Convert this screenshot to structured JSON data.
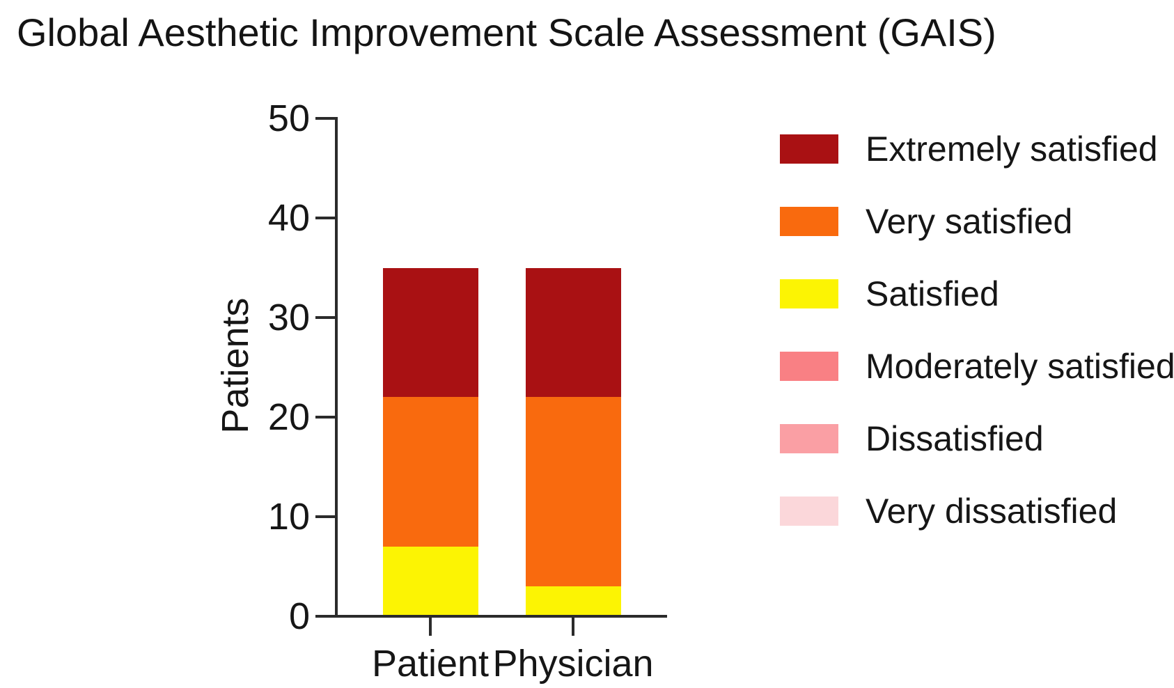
{
  "title": "Global Aesthetic Improvement Scale Assessment (GAIS)",
  "colors": {
    "axis": "#2b2b2b",
    "text": "#161616",
    "background": "#ffffff"
  },
  "chart_data": {
    "type": "bar",
    "stacked": true,
    "title": "Global Aesthetic Improvement Scale Assessment (GAIS)",
    "categories": [
      "Patient",
      "Physician"
    ],
    "series": [
      {
        "name": "Extremely satisfied",
        "color": "#A91113",
        "values": [
          13,
          13
        ]
      },
      {
        "name": "Very satisfied",
        "color": "#F96A0E",
        "values": [
          15,
          19
        ]
      },
      {
        "name": "Satisfied",
        "color": "#FCF403",
        "values": [
          7,
          3
        ]
      },
      {
        "name": "Moderately satisfied",
        "color": "#F98084",
        "values": [
          0,
          0
        ]
      },
      {
        "name": "Dissatisfied",
        "color": "#FA9FA4",
        "values": [
          0,
          0
        ]
      },
      {
        "name": "Very dissatisfied",
        "color": "#FBD7DA",
        "values": [
          0,
          0
        ]
      }
    ],
    "totals": [
      35,
      35
    ],
    "xlabel": "",
    "ylabel": "Patients",
    "ylim": [
      0,
      50
    ],
    "yticks": [
      0,
      10,
      20,
      30,
      40,
      50
    ],
    "grid": false,
    "legend_position": "right"
  }
}
